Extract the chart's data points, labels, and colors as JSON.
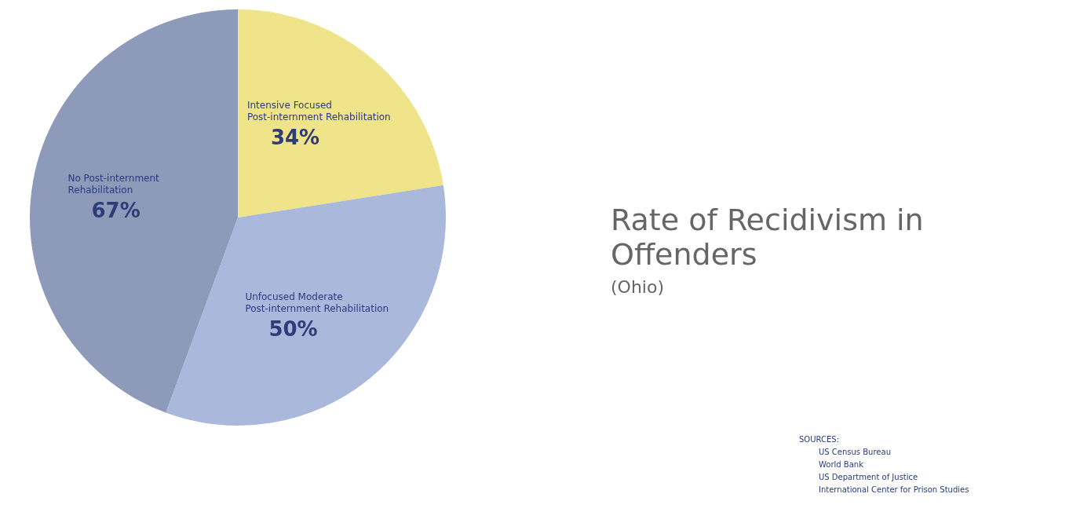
{
  "chart_data": {
    "type": "pie",
    "title": "Rate of Recidivism in Offenders",
    "subtitle": "(Ohio)",
    "categories": [
      "Intensive Focused Post-internment Rehabilitation",
      "Unfocused Moderate Post-internment Rehabilitation",
      "No Post-internment Rehabilitation"
    ],
    "values": [
      34,
      50,
      67
    ],
    "colors": [
      "#f0e48a",
      "#aab8dc",
      "#8e9aba"
    ],
    "value_labels": [
      "34%",
      "50%",
      "67%"
    ],
    "legend": false,
    "annotations": [
      "SOURCES:",
      "US Census Bureau",
      "World Bank",
      "US Department of Justice",
      "International Center for Prison Studies"
    ]
  }
}
